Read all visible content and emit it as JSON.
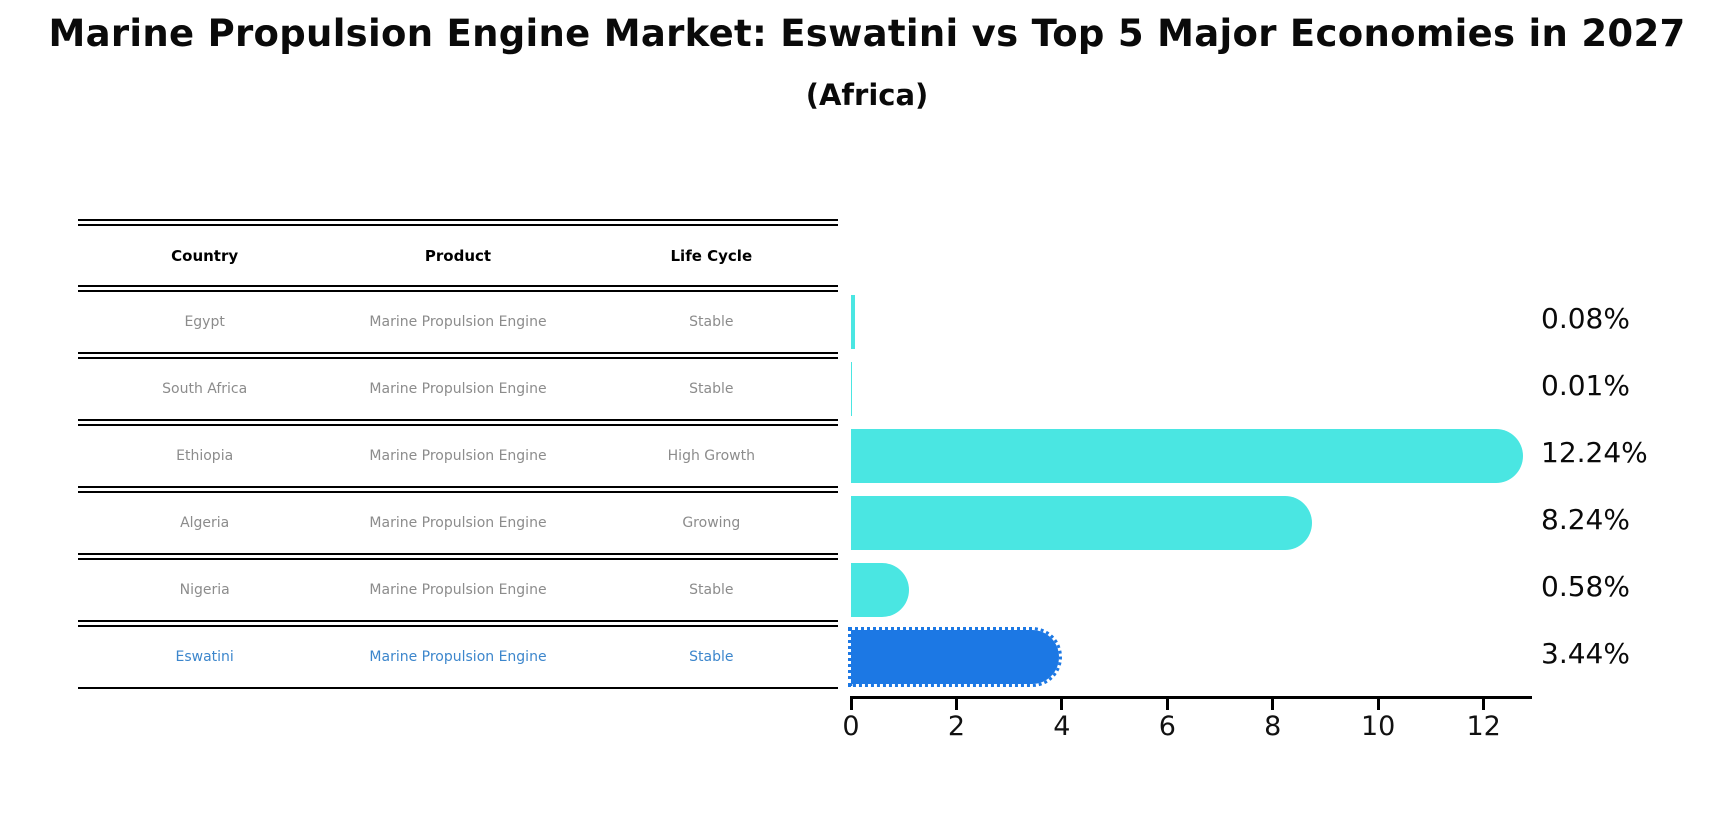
{
  "title": "Marine Propulsion Engine Market: Eswatini vs Top 5 Major Economies in 2027",
  "subtitle": "(Africa)",
  "table": {
    "headers": [
      "Country",
      "Product",
      "Life Cycle"
    ],
    "rows": [
      {
        "country": "Egypt",
        "product": "Marine Propulsion Engine",
        "life_cycle": "Stable",
        "highlight": false
      },
      {
        "country": "South Africa",
        "product": "Marine Propulsion Engine",
        "life_cycle": "Stable",
        "highlight": false
      },
      {
        "country": "Ethiopia",
        "product": "Marine Propulsion Engine",
        "life_cycle": "High Growth",
        "highlight": false
      },
      {
        "country": "Algeria",
        "product": "Marine Propulsion Engine",
        "life_cycle": "Growing",
        "highlight": false
      },
      {
        "country": "Nigeria",
        "product": "Marine Propulsion Engine",
        "life_cycle": "Stable",
        "highlight": false
      },
      {
        "country": "Eswatini",
        "product": "Marine Propulsion Engine",
        "life_cycle": "Stable",
        "highlight": true
      }
    ]
  },
  "chart_data": {
    "type": "bar",
    "orientation": "horizontal",
    "title": "Marine Propulsion Engine Market: Eswatini vs Top 5 Major Economies in 2027 (Africa)",
    "categories": [
      "Egypt",
      "South Africa",
      "Ethiopia",
      "Algeria",
      "Nigeria",
      "Eswatini"
    ],
    "values": [
      0.08,
      0.01,
      12.24,
      8.24,
      0.58,
      3.44
    ],
    "value_labels": [
      "0.08%",
      "0.01%",
      "12.24%",
      "8.24%",
      "0.58%",
      "3.44%"
    ],
    "x_ticks": [
      0,
      2,
      4,
      6,
      8,
      10,
      12
    ],
    "xlim": [
      0,
      12.9
    ],
    "grid": false,
    "legend": false,
    "highlight_index": 5,
    "highlight_style": "dotted-outline-rounded-bar"
  },
  "colors": {
    "bar_color": "#4AE6E2",
    "highlight_bar_color": "#1C78E4",
    "highlight_text_color": "#3C86CC",
    "row_text_color": "#8C8C8C",
    "axis_color": "#000000"
  }
}
